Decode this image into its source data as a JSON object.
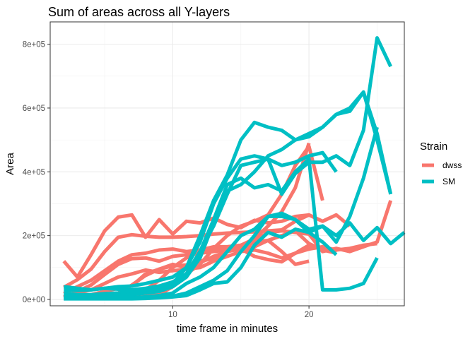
{
  "chart_data": {
    "type": "line",
    "title": "Sum of areas across all Y-layers",
    "xlabel": "time frame in minutes",
    "ylabel": "Area",
    "xlim": [
      1,
      27
    ],
    "ylim": [
      -20000,
      870000
    ],
    "xticks": [
      10,
      20
    ],
    "xtick_labels": [
      "10",
      "20"
    ],
    "yticks": [
      0,
      200000,
      400000,
      600000,
      800000
    ],
    "ytick_labels": [
      "0e+00",
      "2e+05",
      "4e+05",
      "6e+05",
      "8e+05"
    ],
    "grid": true,
    "legend": {
      "title": "Strain",
      "position": "right"
    },
    "colors": {
      "dwss": "#F8766D",
      "SM": "#00BFC4"
    },
    "series": [
      {
        "name": "dwss",
        "x": [
          2,
          3,
          4,
          5,
          6,
          7,
          8,
          9,
          10,
          11,
          12,
          13,
          14,
          15,
          16,
          17,
          18,
          19,
          20
        ],
        "y": [
          120000,
          70000,
          140000,
          215000,
          258000,
          265000,
          195000,
          250000,
          205000,
          245000,
          240000,
          255000,
          235000,
          225000,
          248000,
          240000,
          245000,
          260000,
          265000
        ]
      },
      {
        "name": "dwss",
        "x": [
          2,
          3,
          4,
          5,
          6,
          7,
          8,
          9,
          10,
          11,
          12,
          13,
          14,
          15,
          16,
          17,
          18,
          19,
          20,
          21,
          22,
          23
        ],
        "y": [
          38000,
          62000,
          95000,
          150000,
          195000,
          203000,
          198000,
          195000,
          195000,
          197000,
          200000,
          205000,
          208000,
          210000,
          212000,
          215000,
          218000,
          245000,
          265000,
          245000,
          265000,
          230000
        ]
      },
      {
        "name": "dwss",
        "x": [
          2,
          3,
          4,
          5,
          6,
          7,
          8,
          9,
          10,
          11,
          12,
          13,
          14,
          15,
          16,
          17,
          18,
          19,
          20,
          21,
          22,
          23,
          24,
          25,
          26
        ],
        "y": [
          18000,
          40000,
          60000,
          90000,
          120000,
          140000,
          145000,
          155000,
          158000,
          150000,
          155000,
          165000,
          165000,
          170000,
          185000,
          210000,
          215000,
          210000,
          205000,
          150000,
          160000,
          150000,
          165000,
          180000,
          310000
        ]
      },
      {
        "name": "dwss",
        "x": [
          2,
          3,
          4,
          5,
          6,
          7,
          8,
          9,
          10,
          11,
          12,
          13,
          14,
          15,
          16,
          17,
          18,
          19,
          20,
          21,
          22
        ],
        "y": [
          8000,
          25000,
          45000,
          78000,
          110000,
          128000,
          130000,
          120000,
          135000,
          140000,
          145000,
          150000,
          155000,
          160000,
          165000,
          185000,
          200000,
          215000,
          175000,
          155000,
          145000
        ]
      },
      {
        "name": "dwss",
        "x": [
          2,
          3,
          4,
          5,
          6,
          7,
          8,
          9,
          10,
          11,
          12,
          13,
          14,
          15,
          16,
          17,
          18,
          19,
          20,
          21,
          22,
          23,
          24,
          25
        ],
        "y": [
          5000,
          20000,
          30000,
          50000,
          70000,
          80000,
          92000,
          85000,
          90000,
          95000,
          100000,
          120000,
          135000,
          150000,
          155000,
          145000,
          130000,
          145000,
          158000,
          165000,
          155000,
          160000,
          170000,
          175000
        ]
      },
      {
        "name": "dwss",
        "x": [
          2,
          3,
          4,
          5,
          6,
          7,
          8,
          9,
          10,
          11,
          12,
          13,
          14,
          15,
          16,
          17,
          18,
          19,
          20,
          21
        ],
        "y": [
          3000,
          10000,
          15000,
          25000,
          35000,
          42000,
          80000,
          95000,
          105000,
          108000,
          120000,
          128000,
          150000,
          158000,
          135000,
          125000,
          118000,
          145000,
          170000,
          160000
        ]
      },
      {
        "name": "dwss",
        "x": [
          2,
          3,
          4,
          5,
          6,
          7,
          8,
          9,
          10,
          11,
          12,
          13,
          14,
          15,
          16,
          17,
          18,
          19,
          20
        ],
        "y": [
          2000,
          5000,
          10000,
          15000,
          20000,
          45000,
          75000,
          95000,
          110000,
          100000,
          115000,
          135000,
          150000,
          160000,
          180000,
          185000,
          150000,
          110000,
          120000
        ]
      },
      {
        "name": "dwss",
        "x": [
          6,
          7,
          8,
          9,
          10,
          11,
          12,
          13,
          14,
          15,
          16,
          17,
          18,
          19,
          20,
          21
        ],
        "y": [
          8000,
          10000,
          12000,
          15000,
          40000,
          80000,
          110000,
          160000,
          200000,
          230000,
          245000,
          265000,
          330000,
          420000,
          480000,
          310000
        ]
      },
      {
        "name": "dwss",
        "x": [
          5,
          6,
          7,
          8,
          9,
          10,
          11,
          12,
          13,
          14,
          15,
          16,
          17,
          18,
          19,
          20
        ],
        "y": [
          5000,
          8000,
          12000,
          30000,
          60000,
          100000,
          130000,
          150000,
          155000,
          160000,
          170000,
          190000,
          230000,
          275000,
          350000,
          490000
        ]
      },
      {
        "name": "SM",
        "x": [
          2,
          3,
          4,
          5,
          6,
          7,
          8,
          9,
          10,
          11,
          12,
          13,
          14,
          15,
          16,
          17,
          18,
          19,
          20,
          21,
          22,
          23,
          24,
          25,
          26
        ],
        "y": [
          40000,
          35000,
          30000,
          35000,
          32000,
          30000,
          35000,
          42000,
          55000,
          80000,
          150000,
          230000,
          330000,
          420000,
          430000,
          440000,
          330000,
          395000,
          430000,
          430000,
          450000,
          420000,
          530000,
          820000,
          730000
        ]
      },
      {
        "name": "SM",
        "x": [
          2,
          3,
          4,
          5,
          6,
          7,
          8,
          9,
          10,
          11,
          12,
          13,
          14,
          15,
          16,
          17,
          18,
          19,
          20,
          21,
          22
        ],
        "y": [
          30000,
          28000,
          30000,
          35000,
          40000,
          42000,
          50000,
          60000,
          70000,
          100000,
          180000,
          300000,
          380000,
          440000,
          450000,
          440000,
          420000,
          430000,
          450000,
          460000,
          400000
        ]
      },
      {
        "name": "SM",
        "x": [
          2,
          3,
          4,
          5,
          6,
          7,
          8,
          9,
          10,
          11,
          12,
          13,
          14,
          15,
          16,
          17,
          18,
          19,
          20,
          21,
          22,
          23,
          24,
          25,
          26,
          27
        ],
        "y": [
          20000,
          15000,
          15000,
          18000,
          20000,
          25000,
          30000,
          40000,
          50000,
          80000,
          150000,
          250000,
          360000,
          380000,
          350000,
          360000,
          340000,
          400000,
          440000,
          30000,
          30000,
          35000,
          50000,
          130000,
          null,
          null
        ]
      },
      {
        "name": "SM",
        "x": [
          2,
          3,
          4,
          5,
          6,
          7,
          8,
          9,
          10,
          11,
          12,
          13,
          14,
          15,
          16,
          17,
          18,
          19,
          20,
          21,
          22,
          23,
          24,
          25,
          26,
          27
        ],
        "y": [
          15000,
          12000,
          10000,
          10000,
          12000,
          15000,
          20000,
          30000,
          50000,
          100000,
          200000,
          310000,
          390000,
          500000,
          555000,
          540000,
          530000,
          500000,
          520000,
          540000,
          580000,
          590000,
          650000,
          500000,
          330000,
          null
        ]
      },
      {
        "name": "SM",
        "x": [
          2,
          3,
          4,
          5,
          6,
          7,
          8,
          9,
          10,
          11,
          12,
          13,
          14,
          15,
          16,
          17,
          18,
          19,
          20,
          21,
          22,
          23,
          24,
          25,
          26,
          27
        ],
        "y": [
          10000,
          8000,
          8000,
          10000,
          12000,
          15000,
          20000,
          25000,
          40000,
          70000,
          130000,
          240000,
          340000,
          360000,
          400000,
          450000,
          470000,
          500000,
          510000,
          540000,
          580000,
          600000,
          650000,
          520000,
          330000,
          null
        ]
      },
      {
        "name": "SM",
        "x": [
          2,
          3,
          4,
          5,
          6,
          7,
          8,
          9,
          10,
          11,
          12,
          13,
          14,
          15,
          16,
          17,
          18,
          19,
          20,
          21,
          22,
          23,
          24,
          25,
          26,
          27
        ],
        "y": [
          5000,
          5000,
          5000,
          5000,
          5000,
          5000,
          8000,
          12000,
          20000,
          50000,
          70000,
          100000,
          150000,
          200000,
          220000,
          260000,
          270000,
          250000,
          220000,
          230000,
          200000,
          240000,
          185000,
          225000,
          175000,
          210000
        ]
      },
      {
        "name": "SM",
        "x": [
          2,
          3,
          4,
          5,
          6,
          7,
          8,
          9,
          10,
          11,
          12,
          13,
          14,
          15,
          16,
          17,
          18,
          19,
          20,
          21,
          22,
          23,
          24,
          25,
          26,
          27
        ],
        "y": [
          3000,
          3000,
          3000,
          3000,
          3000,
          3000,
          5000,
          8000,
          10000,
          20000,
          40000,
          60000,
          90000,
          150000,
          200000,
          260000,
          260000,
          250000,
          210000,
          230000,
          180000,
          260000,
          380000,
          540000,
          null,
          null
        ]
      },
      {
        "name": "SM",
        "x": [
          2,
          3,
          4,
          5,
          6,
          7,
          8,
          9,
          10,
          11,
          12,
          13,
          14,
          15,
          16,
          17,
          18,
          19,
          20,
          21,
          22
        ],
        "y": [
          2000,
          2000,
          2000,
          2000,
          2000,
          2000,
          3000,
          5000,
          8000,
          12000,
          30000,
          50000,
          55000,
          100000,
          170000,
          210000,
          195000,
          220000,
          210000,
          180000,
          140000
        ]
      }
    ]
  }
}
